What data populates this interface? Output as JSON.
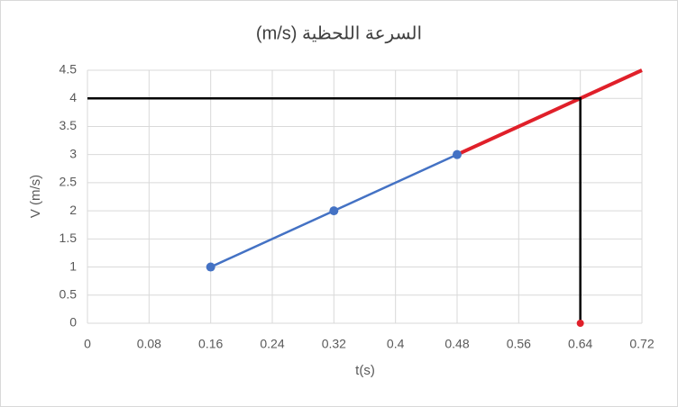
{
  "chart_data": {
    "type": "line",
    "title": "السرعة اللحظية (m/s)",
    "x_label": "t(s)",
    "y_label": "V (m/s)",
    "xlim": [
      0,
      0.72
    ],
    "xticks": [
      0,
      0.08,
      0.16,
      0.24,
      0.32,
      0.4,
      0.48,
      0.56,
      0.64,
      0.72
    ],
    "ylim": [
      0,
      4.5
    ],
    "yticks": [
      0,
      0.5,
      1,
      1.5,
      2,
      2.5,
      3,
      3.5,
      4,
      4.5
    ],
    "grid": true,
    "series": [
      {
        "color": "#4472c4",
        "x": [
          0.16,
          0.32,
          0.48
        ],
        "values": [
          1,
          2,
          3
        ],
        "markers": true,
        "width": 2.5
      },
      {
        "color": "#e0202a",
        "x": [
          0.48,
          0.72
        ],
        "values": [
          3,
          4.5
        ],
        "markers": false,
        "width": 4
      },
      {
        "color": "#000000",
        "x": [
          0,
          0.64,
          0.64
        ],
        "values": [
          4,
          4,
          0
        ],
        "markers": false,
        "width": 2.5
      },
      {
        "color": "#e0202a",
        "x": [
          0.64
        ],
        "values": [
          0
        ],
        "markers": true,
        "width": 2
      }
    ]
  }
}
